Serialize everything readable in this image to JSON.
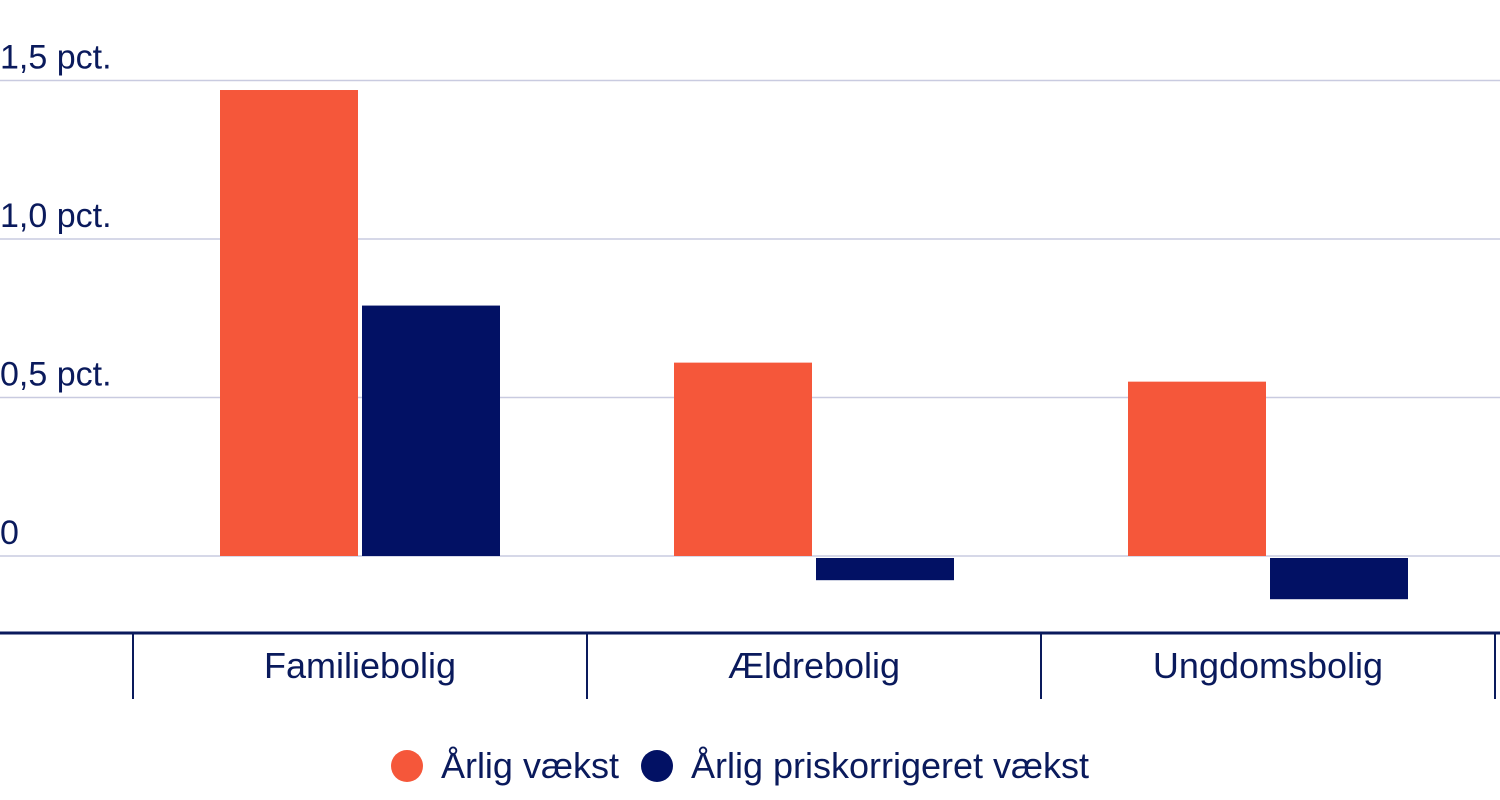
{
  "chart_data": {
    "type": "bar",
    "categories": [
      "Familiebolig",
      "Ældrebolig",
      "Ungdomsbolig"
    ],
    "series": [
      {
        "name": "Årlig vækst",
        "values": [
          1.47,
          0.61,
          0.55
        ],
        "color": "#f5573a"
      },
      {
        "name": "Årlig priskorrigeret vækst",
        "values": [
          0.79,
          -0.07,
          -0.13
        ],
        "color": "#021164"
      }
    ],
    "y_ticks": [
      {
        "value": 0,
        "label": "0"
      },
      {
        "value": 0.5,
        "label": "0,5 pct."
      },
      {
        "value": 1.0,
        "label": "1,0 pct."
      },
      {
        "value": 1.5,
        "label": "1,5 pct."
      }
    ],
    "ylim": [
      -0.24,
      1.5
    ],
    "grid": true,
    "legend_position": "bottom-center",
    "title": "",
    "xlabel": "",
    "ylabel": ""
  }
}
